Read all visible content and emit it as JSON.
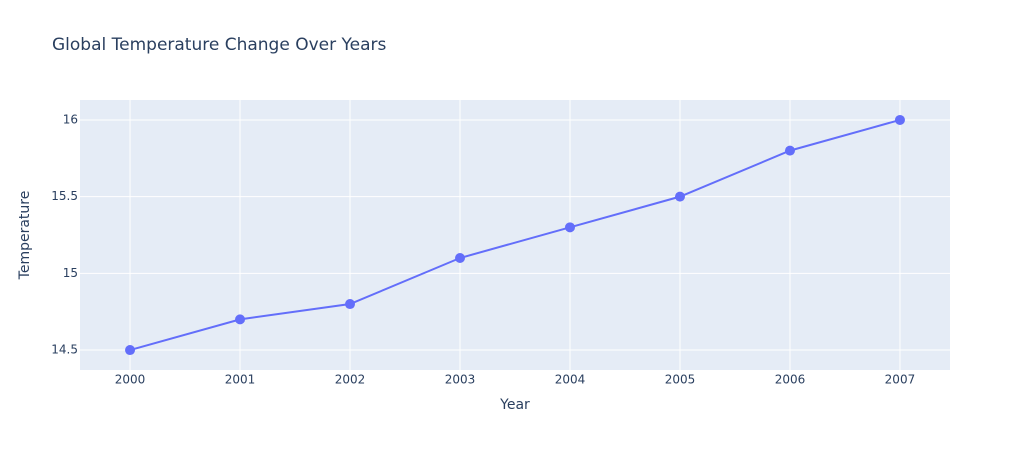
{
  "chart_data": {
    "type": "line",
    "title": "Global Temperature Change Over Years",
    "x_label": "Year",
    "y_label": "Temperature",
    "x": [
      2000,
      2001,
      2002,
      2003,
      2004,
      2005,
      2006,
      2007
    ],
    "values": [
      14.5,
      14.7,
      14.8,
      15.1,
      15.3,
      15.5,
      15.8,
      16.0
    ],
    "color": "#636efa",
    "xlim": [
      1999.545,
      2007.455
    ],
    "xticks": [
      2000,
      2001,
      2002,
      2003,
      2004,
      2005,
      2006,
      2007
    ],
    "ylim": [
      14.37,
      16.13
    ],
    "yticks": [
      14.5,
      15,
      15.5,
      16
    ],
    "grid": true
  }
}
